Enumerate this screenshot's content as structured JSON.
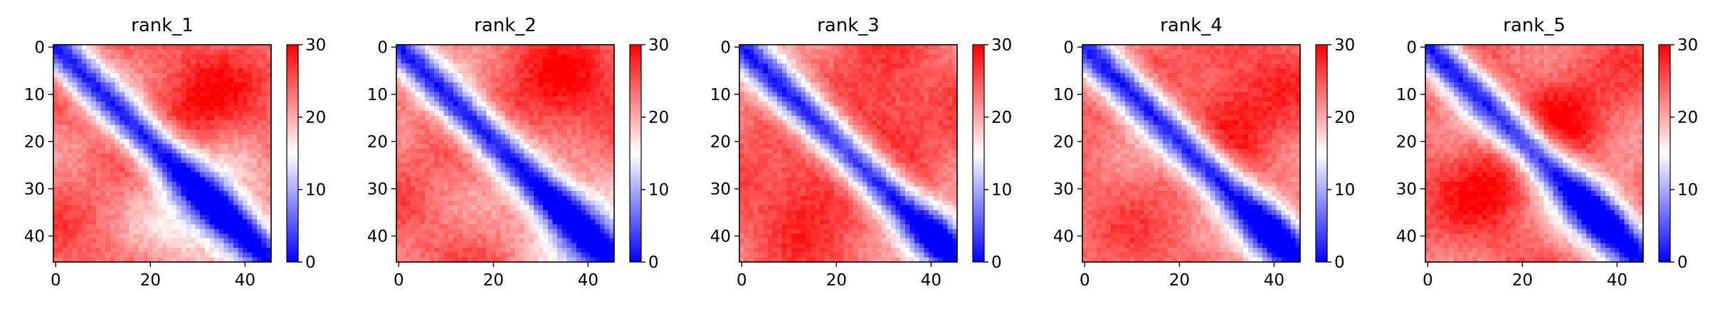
{
  "figure": {
    "panels": [
      "rank_1",
      "rank_2",
      "rank_3",
      "rank_4",
      "rank_5"
    ]
  },
  "chart_data": [
    {
      "type": "heatmap",
      "title": "rank_1",
      "n": 46,
      "xticks": [
        0,
        20,
        40
      ],
      "yticks": [
        0,
        10,
        20,
        30,
        40
      ],
      "xlim": [
        0,
        46
      ],
      "ylim": [
        46,
        0
      ],
      "colorbar": {
        "range": [
          0,
          30
        ],
        "ticks": [
          0,
          10,
          20,
          30
        ],
        "colors": [
          "#0000ff",
          "#ffffff",
          "#ff0000"
        ]
      },
      "pattern": {
        "band": 5,
        "hot_spots": [
          [
            30,
            13,
            8
          ]
        ],
        "cool_regions": [
          [
            32,
            35,
            9
          ]
        ]
      }
    },
    {
      "type": "heatmap",
      "title": "rank_2",
      "n": 46,
      "xticks": [
        0,
        20,
        40
      ],
      "yticks": [
        0,
        10,
        20,
        30,
        40
      ],
      "xlim": [
        0,
        46
      ],
      "ylim": [
        46,
        0
      ],
      "colorbar": {
        "range": [
          0,
          30
        ],
        "ticks": [
          0,
          10,
          20,
          30
        ],
        "colors": [
          "#0000ff",
          "#ffffff",
          "#ff0000"
        ]
      },
      "pattern": {
        "band": 5,
        "hot_spots": [
          [
            35,
            10,
            8
          ]
        ],
        "cool_regions": [
          [
            38,
            38,
            9
          ]
        ]
      }
    },
    {
      "type": "heatmap",
      "title": "rank_3",
      "n": 46,
      "xticks": [
        0,
        20,
        40
      ],
      "yticks": [
        0,
        10,
        20,
        30,
        40
      ],
      "xlim": [
        0,
        46
      ],
      "ylim": [
        46,
        0
      ],
      "colorbar": {
        "range": [
          0,
          30
        ],
        "ticks": [
          0,
          10,
          20,
          30
        ],
        "colors": [
          "#0000ff",
          "#ffffff",
          "#ff0000"
        ]
      },
      "pattern": {
        "band": 5,
        "hot_spots": [
          [
            30,
            14,
            7
          ],
          [
            14,
            30,
            7
          ]
        ],
        "cool_regions": [
          [
            42,
            40,
            5
          ]
        ]
      }
    },
    {
      "type": "heatmap",
      "title": "rank_4",
      "n": 46,
      "xticks": [
        0,
        20,
        40
      ],
      "yticks": [
        0,
        10,
        20,
        30,
        40
      ],
      "xlim": [
        0,
        46
      ],
      "ylim": [
        46,
        0
      ],
      "colorbar": {
        "range": [
          0,
          30
        ],
        "ticks": [
          0,
          10,
          20,
          30
        ],
        "colors": [
          "#0000ff",
          "#ffffff",
          "#ff0000"
        ]
      },
      "pattern": {
        "band": 5,
        "hot_spots": [
          [
            32,
            12,
            8
          ]
        ],
        "cool_regions": [
          [
            40,
            40,
            6
          ]
        ]
      }
    },
    {
      "type": "heatmap",
      "title": "rank_5",
      "n": 46,
      "xticks": [
        0,
        20,
        40
      ],
      "yticks": [
        0,
        10,
        20,
        30,
        40
      ],
      "xlim": [
        0,
        46
      ],
      "ylim": [
        46,
        0
      ],
      "colorbar": {
        "range": [
          0,
          30
        ],
        "ticks": [
          0,
          10,
          20,
          30
        ],
        "colors": [
          "#0000ff",
          "#ffffff",
          "#ff0000"
        ]
      },
      "pattern": {
        "band": 5,
        "hot_spots": [
          [
            29,
            14,
            7
          ],
          [
            14,
            29,
            7
          ]
        ],
        "cool_regions": [
          [
            36,
            36,
            7
          ]
        ]
      }
    }
  ]
}
